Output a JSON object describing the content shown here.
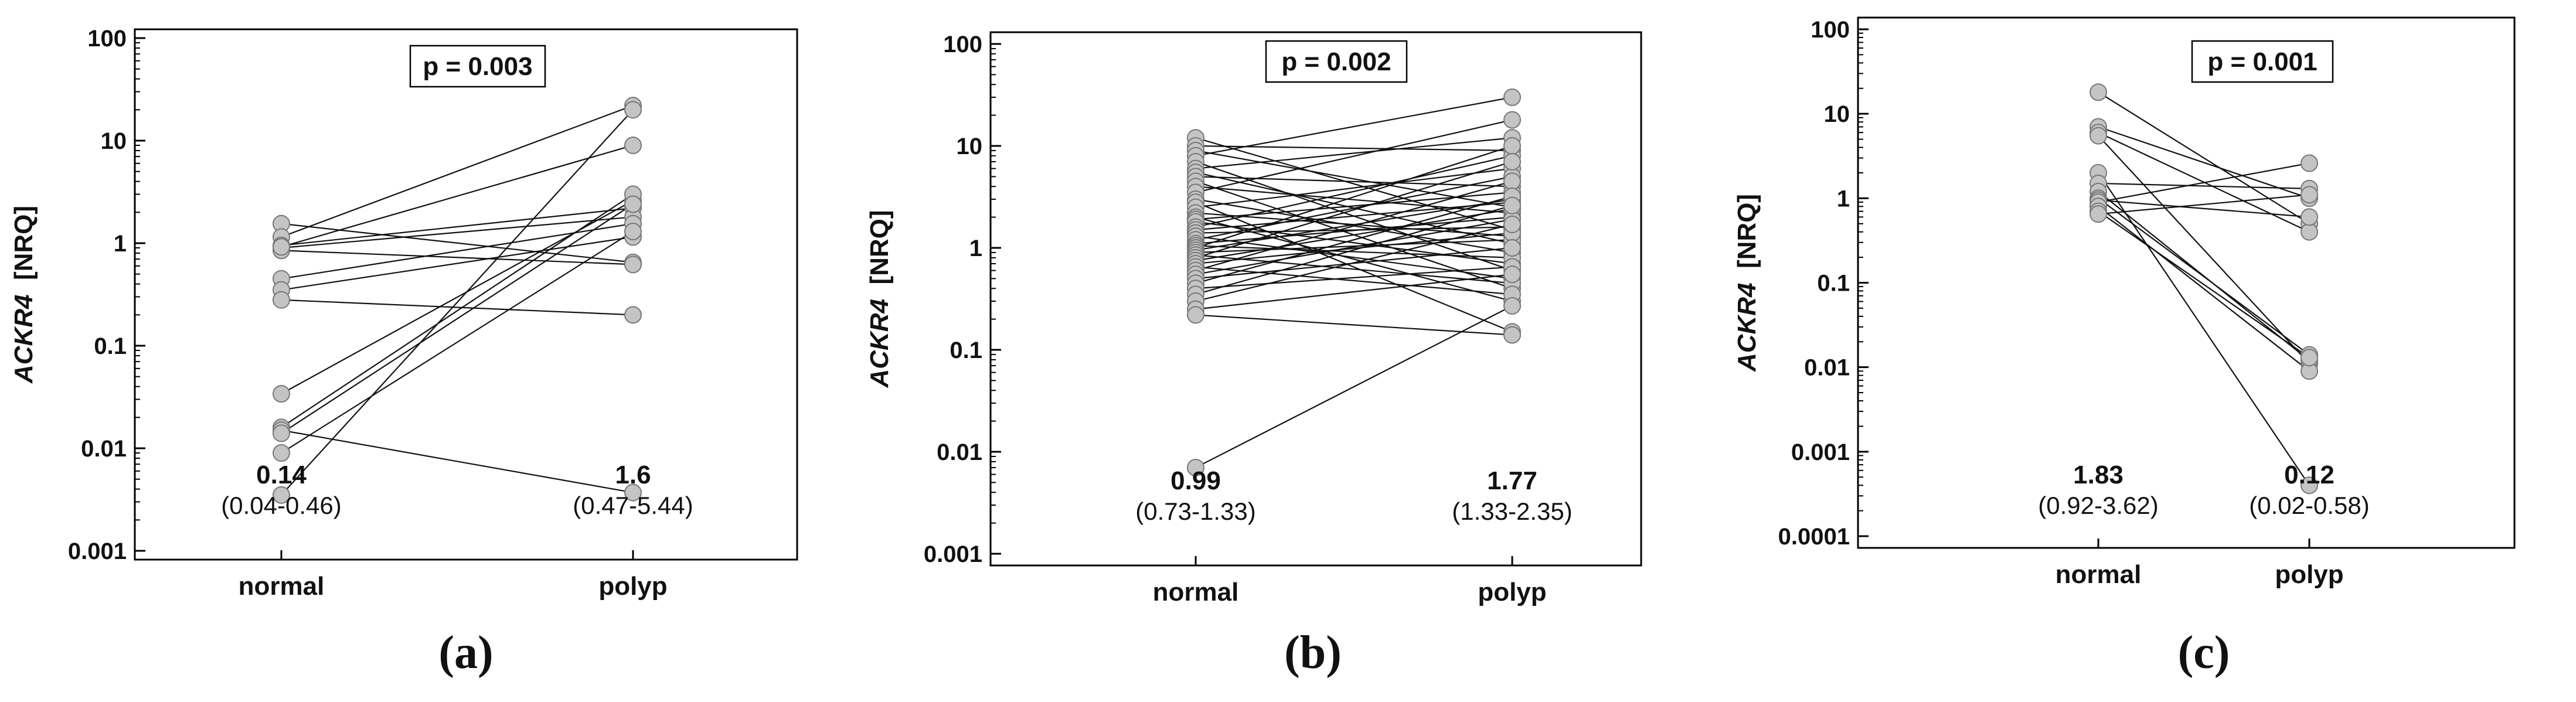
{
  "chart_data": [
    {
      "type": "line",
      "panel_label": "(a)",
      "ylabel_gene": "ACKR4",
      "ylabel_unit": "[NRQ]",
      "yscale": "log",
      "ylim": [
        0.001,
        100
      ],
      "yticks": [
        "0.001",
        "0.01",
        "0.1",
        "1",
        "10",
        "100"
      ],
      "categories": [
        "normal",
        "polyp"
      ],
      "p_value": "p = 0.003",
      "medians": [
        {
          "median": "0.14",
          "iqr": "(0.04-0.46)"
        },
        {
          "median": "1.6",
          "iqr": "(0.47-5.44)"
        }
      ],
      "pairs": [
        [
          1.55,
          0.65
        ],
        [
          1.15,
          22
        ],
        [
          0.95,
          2.2
        ],
        [
          0.9,
          1.8
        ],
        [
          0.85,
          0.62
        ],
        [
          0.45,
          1.55
        ],
        [
          0.35,
          1.15
        ],
        [
          0.28,
          0.2
        ],
        [
          0.034,
          2.6
        ],
        [
          0.016,
          3.0
        ],
        [
          0.015,
          0.0037
        ],
        [
          0.014,
          2.4
        ],
        [
          0.009,
          1.3
        ],
        [
          0.0035,
          20
        ],
        [
          0.92,
          9
        ]
      ]
    },
    {
      "type": "line",
      "panel_label": "(b)",
      "ylabel_gene": "ACKR4",
      "ylabel_unit": "[NRQ]",
      "yscale": "log",
      "ylim": [
        0.001,
        100
      ],
      "yticks": [
        "0.001",
        "0.01",
        "0.1",
        "1",
        "10",
        "100"
      ],
      "categories": [
        "normal",
        "polyp"
      ],
      "p_value": "p = 0.002",
      "medians": [
        {
          "median": "0.99",
          "iqr": "(0.73-1.33)"
        },
        {
          "median": "1.77",
          "iqr": "(1.33-2.35)"
        }
      ],
      "pairs": [
        [
          12,
          1.5
        ],
        [
          10,
          9
        ],
        [
          9,
          2.5
        ],
        [
          8,
          30
        ],
        [
          7,
          0.6
        ],
        [
          6,
          12
        ],
        [
          5.5,
          1.1
        ],
        [
          5,
          4
        ],
        [
          4.5,
          0.4
        ],
        [
          4,
          2.2
        ],
        [
          3.5,
          18
        ],
        [
          3,
          0.9
        ],
        [
          2.8,
          0.15
        ],
        [
          2.5,
          6
        ],
        [
          2.2,
          1.3
        ],
        [
          2,
          0.3
        ],
        [
          1.9,
          3.5
        ],
        [
          1.8,
          0.7
        ],
        [
          1.6,
          8
        ],
        [
          1.5,
          2.8
        ],
        [
          1.4,
          1.6
        ],
        [
          1.3,
          0.5
        ],
        [
          1.2,
          5
        ],
        [
          1.1,
          2
        ],
        [
          1.05,
          0.8
        ],
        [
          1,
          10
        ],
        [
          0.95,
          3
        ],
        [
          0.9,
          1.2
        ],
        [
          0.85,
          0.45
        ],
        [
          0.8,
          7
        ],
        [
          0.75,
          2.4
        ],
        [
          0.7,
          1.4
        ],
        [
          0.65,
          0.35
        ],
        [
          0.6,
          4.5
        ],
        [
          0.55,
          1.9
        ],
        [
          0.5,
          1
        ],
        [
          0.45,
          3.2
        ],
        [
          0.4,
          0.65
        ],
        [
          0.35,
          2.6
        ],
        [
          0.3,
          1.7
        ],
        [
          0.25,
          0.55
        ],
        [
          0.22,
          0.14
        ],
        [
          0.007,
          0.27
        ]
      ]
    },
    {
      "type": "line",
      "panel_label": "(c)",
      "ylabel_gene": "ACKR4",
      "ylabel_unit": "[NRQ]",
      "yscale": "log",
      "ylim": [
        0.0001,
        100
      ],
      "yticks": [
        "0.0001",
        "0.001",
        "0.01",
        "0.1",
        "1",
        "10",
        "100"
      ],
      "categories": [
        "normal",
        "polyp"
      ],
      "p_value": "p = 0.001",
      "medians": [
        {
          "median": "1.83",
          "iqr": "(0.92-3.62)"
        },
        {
          "median": "0.12",
          "iqr": "(0.02-0.58)"
        }
      ],
      "pairs": [
        [
          18,
          0.5
        ],
        [
          7,
          1.0
        ],
        [
          6,
          0.4
        ],
        [
          5.5,
          0.011
        ],
        [
          2,
          0.0004
        ],
        [
          1.5,
          1.3
        ],
        [
          1.2,
          0.012
        ],
        [
          1.0,
          0.014
        ],
        [
          0.95,
          0.6
        ],
        [
          0.9,
          2.6
        ],
        [
          0.8,
          0.009
        ],
        [
          0.7,
          0.013
        ],
        [
          0.65,
          1.1
        ]
      ]
    }
  ]
}
